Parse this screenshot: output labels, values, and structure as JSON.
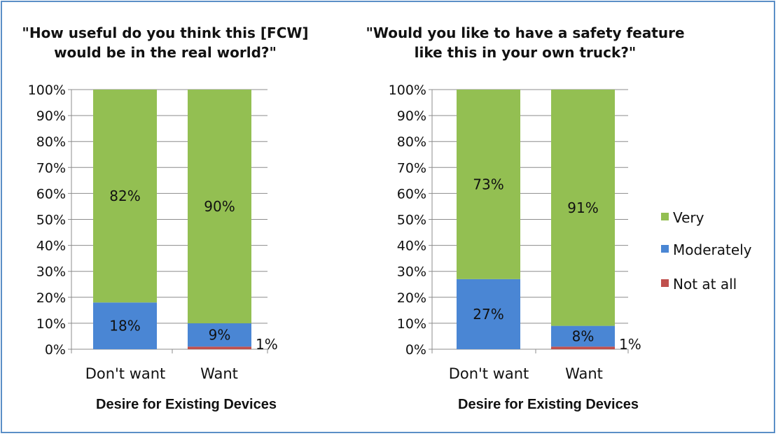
{
  "chart_data": [
    {
      "type": "bar",
      "stacked": true,
      "title": "\"How useful do you think this [FCW] would be in the real world?\"",
      "title_lines": [
        "\"How useful do you think this [FCW]",
        "would be in the real world?\""
      ],
      "xlabel": "Desire for Existing Devices",
      "categories": [
        "Don't want",
        "Want"
      ],
      "yticks": [
        "0%",
        "10%",
        "20%",
        "30%",
        "40%",
        "50%",
        "60%",
        "70%",
        "80%",
        "90%",
        "100%"
      ],
      "ylim": [
        0,
        100
      ],
      "grid": true,
      "series": [
        {
          "name": "Not at all",
          "values": [
            0,
            1
          ],
          "labels": [
            "",
            "1%"
          ],
          "color": "#c0504d"
        },
        {
          "name": "Moderately",
          "values": [
            18,
            9
          ],
          "labels": [
            "18%",
            "9%"
          ],
          "color": "#4a86d4"
        },
        {
          "name": "Very",
          "values": [
            82,
            90
          ],
          "labels": [
            "82%",
            "90%"
          ],
          "color": "#93bf52"
        }
      ]
    },
    {
      "type": "bar",
      "stacked": true,
      "title": "\"Would you like to have a safety feature like this in your own truck?\"",
      "title_lines": [
        "\"Would you like to have a safety feature",
        "like this in your own truck?\""
      ],
      "xlabel": "Desire for Existing Devices",
      "categories": [
        "Don't want",
        "Want"
      ],
      "yticks": [
        "0%",
        "10%",
        "20%",
        "30%",
        "40%",
        "50%",
        "60%",
        "70%",
        "80%",
        "90%",
        "100%"
      ],
      "ylim": [
        0,
        100
      ],
      "grid": true,
      "series": [
        {
          "name": "Not at all",
          "values": [
            0,
            1
          ],
          "labels": [
            "",
            "1%"
          ],
          "color": "#c0504d"
        },
        {
          "name": "Moderately",
          "values": [
            27,
            8
          ],
          "labels": [
            "27%",
            "8%"
          ],
          "color": "#4a86d4"
        },
        {
          "name": "Very",
          "values": [
            73,
            91
          ],
          "labels": [
            "73%",
            "91%"
          ],
          "color": "#93bf52"
        }
      ]
    }
  ],
  "legend": {
    "placement": "right",
    "items": [
      {
        "label": "Very",
        "color": "#93bf52"
      },
      {
        "label": "Moderately",
        "color": "#4a86d4"
      },
      {
        "label": "Not at all",
        "color": "#c0504d"
      }
    ]
  }
}
